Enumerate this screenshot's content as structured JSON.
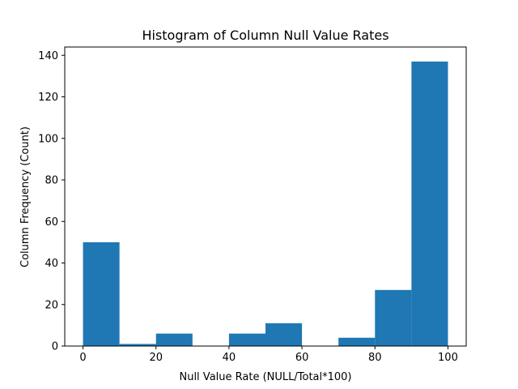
{
  "chart_data": {
    "type": "bar",
    "title": "Histogram of Column Null Value Rates",
    "xlabel": "Null Value Rate (NULL/Total*100)",
    "ylabel": "Column Frequency (Count)",
    "bins": [
      {
        "start": 0,
        "end": 10,
        "count": 50
      },
      {
        "start": 10,
        "end": 20,
        "count": 1
      },
      {
        "start": 20,
        "end": 30,
        "count": 6
      },
      {
        "start": 30,
        "end": 40,
        "count": 0
      },
      {
        "start": 40,
        "end": 50,
        "count": 6
      },
      {
        "start": 50,
        "end": 60,
        "count": 11
      },
      {
        "start": 60,
        "end": 70,
        "count": 0
      },
      {
        "start": 70,
        "end": 80,
        "count": 4
      },
      {
        "start": 80,
        "end": 90,
        "count": 27
      },
      {
        "start": 90,
        "end": 100,
        "count": 137
      }
    ],
    "xlim": [
      -5,
      105
    ],
    "ylim": [
      0,
      144
    ],
    "xticks": [
      0,
      20,
      40,
      60,
      80,
      100
    ],
    "yticks": [
      0,
      20,
      40,
      60,
      80,
      100,
      120,
      140
    ],
    "grid": false,
    "bar_color": "#1f77b4"
  }
}
